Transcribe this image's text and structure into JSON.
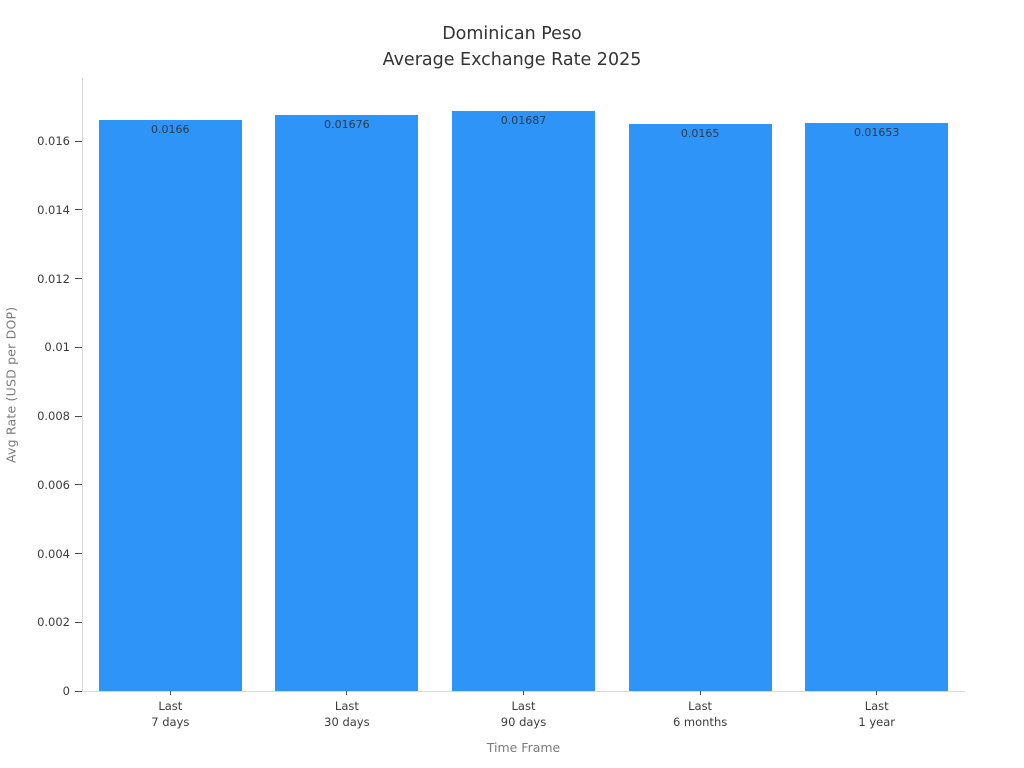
{
  "chart_data": {
    "type": "bar",
    "title": "Dominican Peso\nAverage Exchange Rate 2025",
    "title_lines": [
      "Dominican Peso",
      "Average Exchange Rate 2025"
    ],
    "xlabel": "Time Frame",
    "ylabel": "Avg Rate (USD per DOP)",
    "categories": [
      "Last 7 days",
      "Last 30 days",
      "Last 90 days",
      "Last 6 months",
      "Last 1 year"
    ],
    "category_tick_lines": [
      [
        "Last",
        "7 days"
      ],
      [
        "Last",
        "30 days"
      ],
      [
        "Last",
        "90 days"
      ],
      [
        "Last",
        "6 months"
      ],
      [
        "Last",
        "1 year"
      ]
    ],
    "values": [
      0.0166,
      0.01676,
      0.01687,
      0.0165,
      0.01653
    ],
    "value_labels": [
      "0.0166",
      "0.01676",
      "0.01687",
      "0.0165",
      "0.01653"
    ],
    "yticks": [
      0,
      0.002,
      0.004,
      0.006,
      0.008,
      0.01,
      0.012,
      0.014,
      0.016
    ],
    "ytick_labels": [
      "0",
      "0.002",
      "0.004",
      "0.006",
      "0.008",
      "0.01",
      "0.012",
      "0.014",
      "0.016"
    ],
    "ylim": [
      0,
      0.017833
    ],
    "grid": false,
    "legend": null,
    "colors": {
      "bar": "#2F94F8",
      "title": "#333333",
      "tick_label": "#3c3c3c",
      "axis_label": "#7b7b7b",
      "spine": "#d9d9d9",
      "tick_mark": "#4a4a4a",
      "bar_value_label": "#2b3a4a"
    }
  }
}
